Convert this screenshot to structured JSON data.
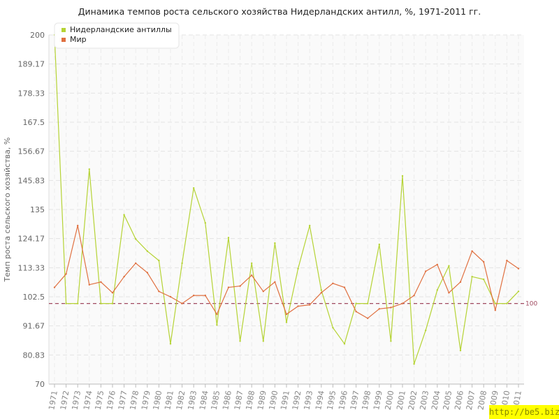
{
  "chart_data": {
    "type": "line",
    "title": "Динамика темпов роста сельского хозяйства Нидерландских антилл, %, 1971-2011 гг.",
    "ylabel": "Темп роста сельского хозяйства, %",
    "xlabel": "",
    "ylim": [
      70,
      200
    ],
    "yticks": [
      "70",
      "80.83",
      "91.67",
      "102.5",
      "113.33",
      "124.17",
      "135",
      "145.83",
      "156.67",
      "167.5",
      "178.33",
      "189.17",
      "200"
    ],
    "categories": [
      "1971",
      "1972",
      "1973",
      "1974",
      "1975",
      "1976",
      "1977",
      "1978",
      "1979",
      "1980",
      "1981",
      "1982",
      "1983",
      "1984",
      "1985",
      "1986",
      "1987",
      "1988",
      "1989",
      "1990",
      "1991",
      "1992",
      "1993",
      "1994",
      "1995",
      "1996",
      "1997",
      "1998",
      "1999",
      "2000",
      "2001",
      "2002",
      "2003",
      "2004",
      "2005",
      "2006",
      "2007",
      "2008",
      "2009",
      "2010",
      "2011"
    ],
    "series": [
      {
        "name": "Нидерландские антиллы",
        "color": "#b5d334",
        "values": [
          200,
          100,
          100,
          150,
          100,
          100,
          133,
          124,
          119.5,
          116,
          85,
          115,
          143,
          130,
          92,
          124.5,
          86,
          115,
          86,
          122.5,
          93,
          113,
          129,
          105,
          91,
          85,
          100,
          100,
          122,
          86,
          147.5,
          77.5,
          90,
          105,
          114,
          82.5,
          110,
          109,
          100,
          100,
          104.5
        ]
      },
      {
        "name": "Мир",
        "color": "#e07040",
        "values": [
          106,
          111,
          129,
          107,
          108,
          104,
          110,
          115,
          111.5,
          104.5,
          102.5,
          100,
          103,
          103,
          96,
          106,
          106.5,
          110.5,
          104.5,
          108,
          96,
          99,
          99.5,
          104,
          107.5,
          106,
          97,
          94.5,
          98,
          98.5,
          100,
          103,
          112,
          114.5,
          104,
          108,
          119.5,
          115.5,
          97.5,
          116,
          113
        ]
      }
    ],
    "reference_line": {
      "value": 100,
      "label": "100",
      "color": "#a04a60"
    },
    "legend": {
      "position": "top-left"
    },
    "grid": true
  },
  "watermark": "http://be5.biz/"
}
